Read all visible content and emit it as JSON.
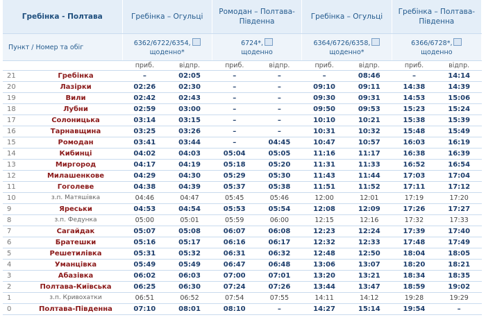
{
  "table": {
    "title": "Гребінка - Полтава",
    "routes": [
      "Гребінка – Огульці",
      "Ромодан – Полтава-Південна",
      "Гребінка – Огульці",
      "Гребінка – Полтава-Південна"
    ],
    "subheader": "Пункт / Номер та обіг",
    "trains": [
      {
        "number": "6362/6722/6354,",
        "days": "щоденно*"
      },
      {
        "number": "6724*,",
        "days": "щоденно"
      },
      {
        "number": "6364/6726/6358,",
        "days": "щоденно*"
      },
      {
        "number": "6366/6728*,",
        "days": "щоденно"
      }
    ],
    "arr": "приб.",
    "dep": "відпр.",
    "rows": [
      {
        "n": "21",
        "name": "Гребінка",
        "bold": true,
        "times": [
          "–",
          "02:05",
          "–",
          "–",
          "–",
          "08:46",
          "–",
          "14:14"
        ]
      },
      {
        "n": "20",
        "name": "Лазірки",
        "bold": true,
        "times": [
          "02:26",
          "02:30",
          "–",
          "–",
          "09:10",
          "09:11",
          "14:38",
          "14:39"
        ]
      },
      {
        "n": "19",
        "name": "Вили",
        "bold": true,
        "times": [
          "02:42",
          "02:43",
          "–",
          "–",
          "09:30",
          "09:31",
          "14:53",
          "15:06"
        ]
      },
      {
        "n": "18",
        "name": "Лубни",
        "bold": true,
        "times": [
          "02:59",
          "03:00",
          "–",
          "–",
          "09:50",
          "09:53",
          "15:23",
          "15:24"
        ]
      },
      {
        "n": "17",
        "name": "Солоницька",
        "bold": true,
        "times": [
          "03:14",
          "03:15",
          "–",
          "–",
          "10:10",
          "10:21",
          "15:38",
          "15:39"
        ]
      },
      {
        "n": "16",
        "name": "Тарнавщина",
        "bold": true,
        "times": [
          "03:25",
          "03:26",
          "–",
          "–",
          "10:31",
          "10:32",
          "15:48",
          "15:49"
        ]
      },
      {
        "n": "15",
        "name": "Ромодан",
        "bold": true,
        "times": [
          "03:41",
          "03:44",
          "–",
          "04:45",
          "10:47",
          "10:57",
          "16:03",
          "16:19"
        ]
      },
      {
        "n": "14",
        "name": "Кибинці",
        "bold": true,
        "times": [
          "04:02",
          "04:03",
          "05:04",
          "05:05",
          "11:16",
          "11:17",
          "16:38",
          "16:39"
        ]
      },
      {
        "n": "13",
        "name": "Миргород",
        "bold": true,
        "times": [
          "04:17",
          "04:19",
          "05:18",
          "05:20",
          "11:31",
          "11:33",
          "16:52",
          "16:54"
        ]
      },
      {
        "n": "12",
        "name": "Милашенкове",
        "bold": true,
        "times": [
          "04:29",
          "04:30",
          "05:29",
          "05:30",
          "11:43",
          "11:44",
          "17:03",
          "17:04"
        ]
      },
      {
        "n": "11",
        "name": "Гоголеве",
        "bold": true,
        "times": [
          "04:38",
          "04:39",
          "05:37",
          "05:38",
          "11:51",
          "11:52",
          "17:11",
          "17:12"
        ]
      },
      {
        "n": "10",
        "name": "з.п. Матяшівка",
        "bold": false,
        "times": [
          "04:46",
          "04:47",
          "05:45",
          "05:46",
          "12:00",
          "12:01",
          "17:19",
          "17:20"
        ]
      },
      {
        "n": "9",
        "name": "Яреськи",
        "bold": true,
        "times": [
          "04:53",
          "04:54",
          "05:53",
          "05:54",
          "12:08",
          "12:09",
          "17:26",
          "17:27"
        ]
      },
      {
        "n": "8",
        "name": "з.п. Федунка",
        "bold": false,
        "times": [
          "05:00",
          "05:01",
          "05:59",
          "06:00",
          "12:15",
          "12:16",
          "17:32",
          "17:33"
        ]
      },
      {
        "n": "7",
        "name": "Сагайдак",
        "bold": true,
        "times": [
          "05:07",
          "05:08",
          "06:07",
          "06:08",
          "12:23",
          "12:24",
          "17:39",
          "17:40"
        ]
      },
      {
        "n": "6",
        "name": "Братешки",
        "bold": true,
        "times": [
          "05:16",
          "05:17",
          "06:16",
          "06:17",
          "12:32",
          "12:33",
          "17:48",
          "17:49"
        ]
      },
      {
        "n": "5",
        "name": "Решетилівка",
        "bold": true,
        "times": [
          "05:31",
          "05:32",
          "06:31",
          "06:32",
          "12:48",
          "12:50",
          "18:04",
          "18:05"
        ]
      },
      {
        "n": "4",
        "name": "Уманцівка",
        "bold": true,
        "times": [
          "05:49",
          "05:49",
          "06:47",
          "06:48",
          "13:06",
          "13:07",
          "18:20",
          "18:21"
        ]
      },
      {
        "n": "3",
        "name": "Абазівка",
        "bold": true,
        "times": [
          "06:02",
          "06:03",
          "07:00",
          "07:01",
          "13:20",
          "13:21",
          "18:34",
          "18:35"
        ]
      },
      {
        "n": "2",
        "name": "Полтава-Київська",
        "bold": true,
        "times": [
          "06:25",
          "06:30",
          "07:24",
          "07:26",
          "13:44",
          "13:47",
          "18:59",
          "19:02"
        ]
      },
      {
        "n": "1",
        "name": "з.п. Кривохатки",
        "bold": false,
        "times": [
          "06:51",
          "06:52",
          "07:54",
          "07:55",
          "14:11",
          "14:12",
          "19:28",
          "19:29"
        ]
      },
      {
        "n": "0",
        "name": "Полтава-Південна",
        "bold": true,
        "times": [
          "07:10",
          "08:01",
          "08:10",
          "–",
          "14:27",
          "15:14",
          "19:54",
          "–"
        ]
      }
    ]
  }
}
